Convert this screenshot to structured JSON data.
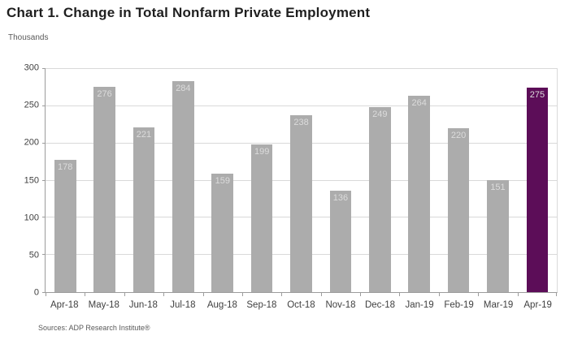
{
  "title": "Chart 1. Change in Total Nonfarm Private Employment",
  "units_label": "Thousands",
  "source_note": "Sources: ADP Research Institute®",
  "colors": {
    "bar_default": "#acacac",
    "bar_highlight": "#5c0d58",
    "value_label": "#dcdcdc",
    "gridline": "#d9d9d9",
    "axis_line": "#9c9c9c",
    "tick_label": "#404040",
    "title_text": "#1f1f1f",
    "note_text": "#595959"
  },
  "chart_data": {
    "type": "bar",
    "title": "Chart 1. Change in Total Nonfarm Private Employment",
    "categories": [
      "Apr-18",
      "May-18",
      "Jun-18",
      "Jul-18",
      "Aug-18",
      "Sep-18",
      "Oct-18",
      "Nov-18",
      "Dec-18",
      "Jan-19",
      "Feb-19",
      "Mar-19",
      "Apr-19"
    ],
    "values": [
      178,
      276,
      221,
      284,
      159,
      199,
      238,
      136,
      249,
      264,
      220,
      151,
      275
    ],
    "highlight_index": 12,
    "xlabel": "",
    "ylabel": "Thousands",
    "ylim": [
      0,
      300
    ],
    "yticks": [
      0,
      50,
      100,
      150,
      200,
      250,
      300
    ],
    "grid": true,
    "legend": "none",
    "value_labels": "inside-top"
  }
}
